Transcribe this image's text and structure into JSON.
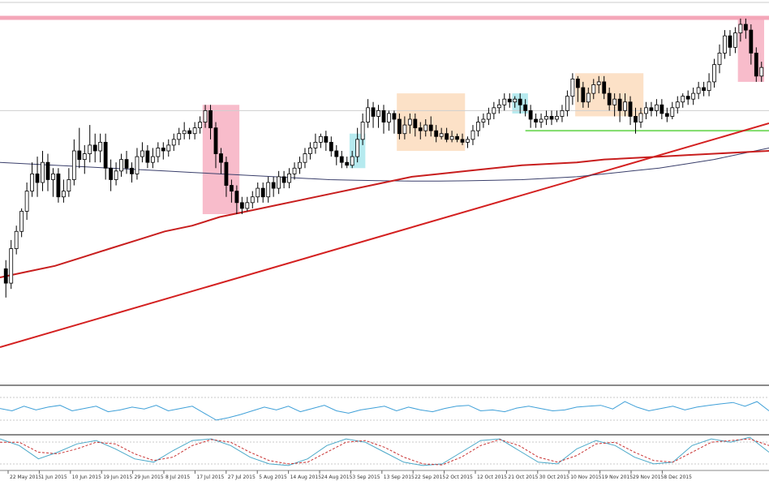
{
  "chart_data": [
    {
      "type": "candlestick",
      "panel": "main",
      "colors": {
        "up_body": "#ffffff",
        "down_body": "#000000",
        "wick": "#000000",
        "ma_fast": "#c81e1e",
        "ma_slow": "#3a3f6b",
        "trendline": "#d42020",
        "resistance": "#f4a6b8",
        "support": "#7fdc6a",
        "pivot": "#cfcfcf",
        "zone_pink": "#f5a6ba",
        "zone_orange": "#fbd7b4",
        "zone_cyan": "#9ee3ea"
      },
      "candles": [
        [
          0.25,
          0.2,
          0.15,
          0.28
        ],
        [
          0.2,
          0.32,
          0.18,
          0.35
        ],
        [
          0.32,
          0.38,
          0.3,
          0.4
        ],
        [
          0.38,
          0.45,
          0.36,
          0.46
        ],
        [
          0.45,
          0.52,
          0.42,
          0.55
        ],
        [
          0.52,
          0.58,
          0.5,
          0.62
        ],
        [
          0.58,
          0.55,
          0.5,
          0.64
        ],
        [
          0.55,
          0.62,
          0.52,
          0.66
        ],
        [
          0.62,
          0.56,
          0.52,
          0.65
        ],
        [
          0.56,
          0.58,
          0.5,
          0.6
        ],
        [
          0.58,
          0.5,
          0.48,
          0.6
        ],
        [
          0.5,
          0.52,
          0.48,
          0.56
        ],
        [
          0.52,
          0.56,
          0.5,
          0.6
        ],
        [
          0.56,
          0.66,
          0.54,
          0.7
        ],
        [
          0.66,
          0.63,
          0.6,
          0.74
        ],
        [
          0.63,
          0.65,
          0.58,
          0.68
        ],
        [
          0.65,
          0.68,
          0.62,
          0.75
        ],
        [
          0.68,
          0.66,
          0.62,
          0.72
        ],
        [
          0.66,
          0.69,
          0.62,
          0.72
        ],
        [
          0.69,
          0.6,
          0.56,
          0.72
        ],
        [
          0.6,
          0.56,
          0.52,
          0.63
        ],
        [
          0.56,
          0.59,
          0.54,
          0.62
        ],
        [
          0.59,
          0.63,
          0.57,
          0.65
        ],
        [
          0.63,
          0.6,
          0.58,
          0.66
        ],
        [
          0.6,
          0.58,
          0.55,
          0.62
        ],
        [
          0.58,
          0.64,
          0.56,
          0.67
        ],
        [
          0.64,
          0.66,
          0.62,
          0.69
        ],
        [
          0.66,
          0.62,
          0.6,
          0.68
        ],
        [
          0.62,
          0.64,
          0.6,
          0.67
        ],
        [
          0.64,
          0.67,
          0.62,
          0.69
        ],
        [
          0.67,
          0.66,
          0.63,
          0.69
        ],
        [
          0.66,
          0.68,
          0.64,
          0.7
        ],
        [
          0.68,
          0.7,
          0.66,
          0.72
        ],
        [
          0.7,
          0.72,
          0.68,
          0.74
        ],
        [
          0.72,
          0.73,
          0.7,
          0.76
        ],
        [
          0.73,
          0.72,
          0.7,
          0.74
        ],
        [
          0.72,
          0.74,
          0.7,
          0.76
        ],
        [
          0.74,
          0.76,
          0.72,
          0.78
        ],
        [
          0.76,
          0.8,
          0.74,
          0.82
        ],
        [
          0.8,
          0.74,
          0.7,
          0.82
        ],
        [
          0.74,
          0.65,
          0.6,
          0.76
        ],
        [
          0.65,
          0.62,
          0.58,
          0.67
        ],
        [
          0.62,
          0.54,
          0.5,
          0.64
        ],
        [
          0.54,
          0.52,
          0.48,
          0.56
        ],
        [
          0.52,
          0.48,
          0.44,
          0.54
        ],
        [
          0.48,
          0.46,
          0.44,
          0.5
        ],
        [
          0.46,
          0.48,
          0.45,
          0.5
        ],
        [
          0.48,
          0.5,
          0.46,
          0.52
        ],
        [
          0.5,
          0.53,
          0.48,
          0.55
        ],
        [
          0.53,
          0.5,
          0.48,
          0.55
        ],
        [
          0.5,
          0.55,
          0.48,
          0.57
        ],
        [
          0.55,
          0.53,
          0.5,
          0.57
        ],
        [
          0.53,
          0.57,
          0.51,
          0.59
        ],
        [
          0.57,
          0.55,
          0.53,
          0.59
        ],
        [
          0.55,
          0.58,
          0.53,
          0.6
        ],
        [
          0.58,
          0.6,
          0.56,
          0.62
        ],
        [
          0.6,
          0.62,
          0.58,
          0.64
        ],
        [
          0.62,
          0.65,
          0.6,
          0.67
        ],
        [
          0.65,
          0.67,
          0.63,
          0.69
        ],
        [
          0.67,
          0.69,
          0.65,
          0.72
        ],
        [
          0.69,
          0.71,
          0.67,
          0.72
        ],
        [
          0.71,
          0.69,
          0.66,
          0.73
        ],
        [
          0.69,
          0.66,
          0.64,
          0.71
        ],
        [
          0.66,
          0.64,
          0.61,
          0.68
        ],
        [
          0.64,
          0.62,
          0.6,
          0.66
        ],
        [
          0.62,
          0.61,
          0.6,
          0.64
        ],
        [
          0.61,
          0.64,
          0.6,
          0.66
        ],
        [
          0.64,
          0.7,
          0.62,
          0.74
        ],
        [
          0.7,
          0.76,
          0.68,
          0.79
        ],
        [
          0.76,
          0.81,
          0.74,
          0.84
        ],
        [
          0.81,
          0.78,
          0.74,
          0.83
        ],
        [
          0.78,
          0.8,
          0.74,
          0.82
        ],
        [
          0.8,
          0.76,
          0.72,
          0.82
        ],
        [
          0.76,
          0.79,
          0.73,
          0.8
        ],
        [
          0.79,
          0.77,
          0.72,
          0.8
        ],
        [
          0.77,
          0.72,
          0.7,
          0.79
        ],
        [
          0.72,
          0.75,
          0.7,
          0.78
        ],
        [
          0.75,
          0.77,
          0.72,
          0.79
        ],
        [
          0.77,
          0.74,
          0.71,
          0.79
        ],
        [
          0.74,
          0.73,
          0.7,
          0.76
        ],
        [
          0.73,
          0.75,
          0.71,
          0.77
        ],
        [
          0.75,
          0.73,
          0.71,
          0.78
        ],
        [
          0.73,
          0.71,
          0.69,
          0.75
        ],
        [
          0.71,
          0.72,
          0.7,
          0.74
        ],
        [
          0.72,
          0.7,
          0.69,
          0.74
        ],
        [
          0.7,
          0.71,
          0.69,
          0.73
        ],
        [
          0.71,
          0.7,
          0.69,
          0.72
        ],
        [
          0.7,
          0.69,
          0.68,
          0.72
        ],
        [
          0.69,
          0.7,
          0.67,
          0.71
        ],
        [
          0.7,
          0.73,
          0.68,
          0.75
        ],
        [
          0.73,
          0.76,
          0.71,
          0.78
        ],
        [
          0.76,
          0.77,
          0.74,
          0.79
        ],
        [
          0.77,
          0.79,
          0.75,
          0.81
        ],
        [
          0.79,
          0.81,
          0.77,
          0.83
        ],
        [
          0.81,
          0.82,
          0.79,
          0.84
        ],
        [
          0.82,
          0.84,
          0.8,
          0.86
        ],
        [
          0.84,
          0.83,
          0.81,
          0.86
        ],
        [
          0.83,
          0.84,
          0.81,
          0.85
        ],
        [
          0.84,
          0.82,
          0.79,
          0.86
        ],
        [
          0.82,
          0.8,
          0.78,
          0.84
        ],
        [
          0.8,
          0.77,
          0.74,
          0.82
        ],
        [
          0.77,
          0.76,
          0.74,
          0.79
        ],
        [
          0.76,
          0.77,
          0.74,
          0.79
        ],
        [
          0.77,
          0.78,
          0.75,
          0.8
        ],
        [
          0.78,
          0.77,
          0.75,
          0.8
        ],
        [
          0.77,
          0.78,
          0.76,
          0.8
        ],
        [
          0.78,
          0.8,
          0.76,
          0.82
        ],
        [
          0.8,
          0.85,
          0.78,
          0.87
        ],
        [
          0.85,
          0.91,
          0.82,
          0.93
        ],
        [
          0.91,
          0.88,
          0.83,
          0.92
        ],
        [
          0.88,
          0.83,
          0.81,
          0.9
        ],
        [
          0.83,
          0.86,
          0.81,
          0.88
        ],
        [
          0.86,
          0.89,
          0.84,
          0.91
        ],
        [
          0.89,
          0.9,
          0.86,
          0.92
        ],
        [
          0.9,
          0.86,
          0.84,
          0.92
        ],
        [
          0.86,
          0.82,
          0.8,
          0.88
        ],
        [
          0.82,
          0.84,
          0.78,
          0.86
        ],
        [
          0.84,
          0.8,
          0.76,
          0.86
        ],
        [
          0.8,
          0.83,
          0.78,
          0.86
        ],
        [
          0.83,
          0.78,
          0.75,
          0.85
        ],
        [
          0.78,
          0.76,
          0.72,
          0.81
        ],
        [
          0.76,
          0.79,
          0.74,
          0.81
        ],
        [
          0.79,
          0.81,
          0.77,
          0.83
        ],
        [
          0.81,
          0.8,
          0.78,
          0.83
        ],
        [
          0.8,
          0.82,
          0.78,
          0.84
        ],
        [
          0.82,
          0.79,
          0.77,
          0.84
        ],
        [
          0.79,
          0.78,
          0.76,
          0.81
        ],
        [
          0.78,
          0.81,
          0.77,
          0.83
        ],
        [
          0.81,
          0.83,
          0.79,
          0.85
        ],
        [
          0.83,
          0.85,
          0.81,
          0.86
        ],
        [
          0.85,
          0.84,
          0.82,
          0.87
        ],
        [
          0.84,
          0.86,
          0.82,
          0.88
        ],
        [
          0.86,
          0.88,
          0.84,
          0.9
        ],
        [
          0.88,
          0.87,
          0.85,
          0.9
        ],
        [
          0.87,
          0.9,
          0.85,
          0.93
        ],
        [
          0.9,
          0.96,
          0.88,
          0.98
        ],
        [
          0.96,
          1.0,
          0.93,
          1.03
        ],
        [
          1.0,
          1.06,
          0.98,
          1.08
        ],
        [
          1.06,
          1.02,
          0.99,
          1.08
        ],
        [
          1.02,
          1.07,
          1.0,
          1.09
        ],
        [
          1.07,
          1.1,
          1.04,
          1.12
        ],
        [
          1.1,
          1.08,
          1.05,
          1.12
        ],
        [
          1.08,
          1.0,
          0.96,
          1.1
        ],
        [
          1.0,
          0.92,
          0.9,
          1.02
        ],
        [
          0.92,
          0.95,
          0.9,
          0.97
        ]
      ],
      "ma_fast": [
        0.22,
        0.24,
        0.26,
        0.29,
        0.32,
        0.35,
        0.38,
        0.4,
        0.43,
        0.45,
        0.47,
        0.49,
        0.51,
        0.53,
        0.55,
        0.57,
        0.58,
        0.59,
        0.6,
        0.61,
        0.615,
        0.62,
        0.63,
        0.635,
        0.64,
        0.645,
        0.65,
        0.655,
        0.66
      ],
      "ma_slow": [
        0.62,
        0.615,
        0.61,
        0.605,
        0.6,
        0.595,
        0.59,
        0.585,
        0.58,
        0.575,
        0.57,
        0.565,
        0.56,
        0.558,
        0.556,
        0.555,
        0.555,
        0.556,
        0.558,
        0.56,
        0.565,
        0.57,
        0.58,
        0.59,
        0.6,
        0.615,
        0.63,
        0.65,
        0.67
      ],
      "ylim": [
        0.0,
        1.1
      ]
    },
    {
      "type": "line",
      "panel": "indicator-1",
      "series": [
        {
          "values": [
            0.55,
            0.5,
            0.6,
            0.52,
            0.58,
            0.62,
            0.5,
            0.55,
            0.6,
            0.48,
            0.52,
            0.58,
            0.54,
            0.62,
            0.5,
            0.55,
            0.6,
            0.45,
            0.3,
            0.35,
            0.42,
            0.5,
            0.58,
            0.52,
            0.6,
            0.48,
            0.55,
            0.62,
            0.5,
            0.45,
            0.52,
            0.56,
            0.6,
            0.5,
            0.58,
            0.52,
            0.48,
            0.55,
            0.6,
            0.62,
            0.5,
            0.52,
            0.48,
            0.56,
            0.6,
            0.55,
            0.5,
            0.52,
            0.58,
            0.6,
            0.62,
            0.54,
            0.7,
            0.58,
            0.5,
            0.55,
            0.6,
            0.52,
            0.58,
            0.62,
            0.65,
            0.68,
            0.6,
            0.7,
            0.5
          ]
        }
      ],
      "ylim": [
        0,
        1
      ]
    },
    {
      "type": "line",
      "panel": "indicator-2",
      "series": [
        {
          "style": "solid",
          "values": [
            0.9,
            0.7,
            0.3,
            0.5,
            0.75,
            0.85,
            0.6,
            0.3,
            0.2,
            0.55,
            0.85,
            0.9,
            0.7,
            0.35,
            0.15,
            0.1,
            0.3,
            0.7,
            0.9,
            0.8,
            0.5,
            0.2,
            0.1,
            0.15,
            0.5,
            0.85,
            0.9,
            0.55,
            0.2,
            0.15,
            0.6,
            0.85,
            0.7,
            0.35,
            0.15,
            0.2,
            0.7,
            0.9,
            0.8,
            0.95,
            0.5
          ]
        },
        {
          "style": "dashed",
          "values": [
            0.8,
            0.8,
            0.5,
            0.45,
            0.6,
            0.8,
            0.75,
            0.45,
            0.25,
            0.35,
            0.7,
            0.88,
            0.8,
            0.5,
            0.25,
            0.15,
            0.2,
            0.5,
            0.8,
            0.85,
            0.65,
            0.35,
            0.15,
            0.12,
            0.35,
            0.7,
            0.88,
            0.7,
            0.35,
            0.2,
            0.4,
            0.75,
            0.8,
            0.5,
            0.25,
            0.2,
            0.5,
            0.8,
            0.85,
            0.9,
            0.7
          ]
        }
      ],
      "ylim": [
        0,
        1
      ]
    }
  ],
  "x_axis": {
    "labels": [
      "22 May 2015",
      "1 Jun 2015",
      "10 Jun 2015",
      "19 Jun 2015",
      "29 Jun 2015",
      "8 Jul 2015",
      "17 Jul 2015",
      "27 Jul 2015",
      "5 Aug 2015",
      "14 Aug 2015",
      "24 Aug 2015",
      "3 Sep 2015",
      "13 Sep 2015",
      "22 Sep 2015",
      "2 Oct 2015",
      "12 Oct 2015",
      "21 Oct 2015",
      "30 Oct 2015",
      "10 Nov 2015",
      "19 Nov 2015",
      "29 Nov 2015",
      "8 Dec 2015"
    ]
  }
}
